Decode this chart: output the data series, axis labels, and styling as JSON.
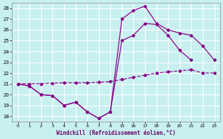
{
  "xlabel": "Windchill (Refroidissement éolien,°C)",
  "bg_color": "#c8f0f0",
  "line_color": "#880088",
  "grid_color": "#ffffff",
  "ylim": [
    17.5,
    28.5
  ],
  "yticks": [
    18,
    19,
    20,
    21,
    22,
    23,
    24,
    25,
    26,
    27,
    28
  ],
  "xtick_labels": [
    "0",
    "1",
    "2",
    "3",
    "4",
    "5",
    "6",
    "7",
    "8",
    "15",
    "16",
    "17",
    "18",
    "19",
    "20",
    "21",
    "22",
    "23"
  ],
  "line1_y": [
    21.0,
    20.8,
    20.0,
    19.9,
    19.0,
    19.3,
    18.4,
    17.8,
    18.4,
    27.0,
    27.8,
    28.2,
    26.6,
    26.0,
    25.7,
    25.5,
    24.5,
    23.2
  ],
  "line2_y": [
    21.0,
    21.0,
    21.0,
    21.05,
    21.1,
    21.1,
    21.1,
    21.15,
    21.2,
    21.4,
    21.6,
    21.8,
    22.0,
    22.1,
    22.2,
    22.3,
    22.0,
    22.0
  ],
  "line3_y": [
    21.0,
    20.8,
    20.0,
    19.9,
    19.0,
    19.3,
    18.4,
    17.8,
    18.4,
    25.0,
    25.5,
    26.6,
    26.5,
    25.5,
    24.1,
    23.2,
    null,
    null
  ],
  "line1_solid": true,
  "line2_dashed": true,
  "line3_solid": true
}
